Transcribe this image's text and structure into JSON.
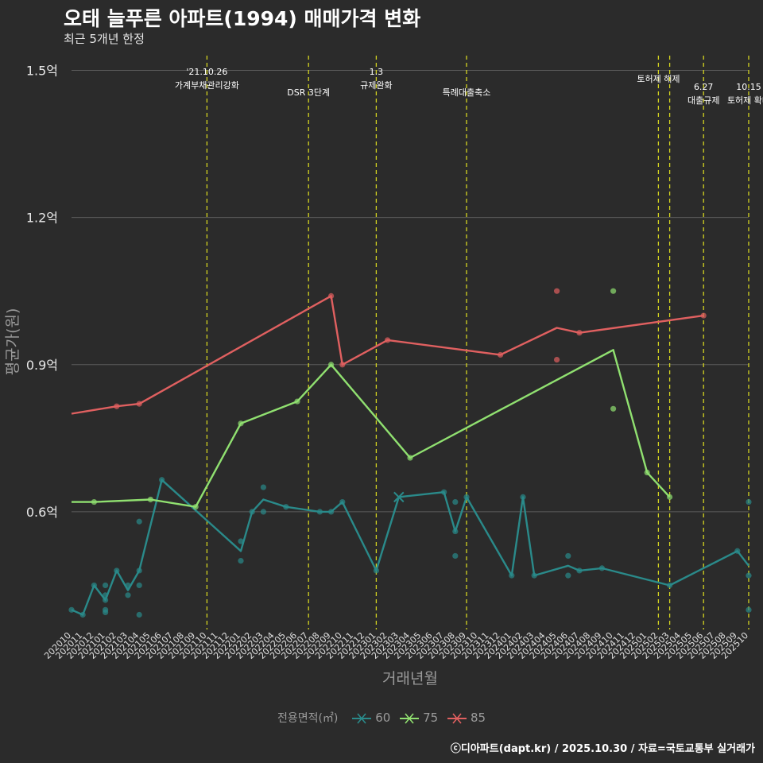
{
  "title": "오태 늘푸른 아파트(1994) 매매가격 변화",
  "subtitle": "최근 5개년 한정",
  "credit": "ⓒ디아파트(dapt.kr) / 2025.10.30 / 자료=국토교통부 실거래가",
  "chart_data": {
    "type": "line",
    "title": "오태 늘푸른 아파트(1994) 매매가격 변화",
    "xlabel": "거래년월",
    "ylabel": "평균가(원)",
    "x_ticks": [
      "202010",
      "202011",
      "202012",
      "202101",
      "202102",
      "202103",
      "202104",
      "202105",
      "202106",
      "202107",
      "202108",
      "202109",
      "202110",
      "202111",
      "202112",
      "202201",
      "202202",
      "202203",
      "202204",
      "202205",
      "202206",
      "202207",
      "202208",
      "202209",
      "202210",
      "202211",
      "202212",
      "202301",
      "202302",
      "202303",
      "202304",
      "202305",
      "202306",
      "202307",
      "202308",
      "202309",
      "202310",
      "202311",
      "202312",
      "202401",
      "202402",
      "202403",
      "202404",
      "202405",
      "202406",
      "202407",
      "202408",
      "202409",
      "202410",
      "202411",
      "202412",
      "202501",
      "202502",
      "202503",
      "202504",
      "202505",
      "202506",
      "202507",
      "202508",
      "202509",
      "202510"
    ],
    "y_ticks": [
      {
        "value": 0.6,
        "label": "0.6억"
      },
      {
        "value": 0.9,
        "label": "0.9억"
      },
      {
        "value": 1.2,
        "label": "1.2억"
      },
      {
        "value": 1.5,
        "label": "1.5억"
      }
    ],
    "ylim": [
      0.36,
      1.53
    ],
    "legend_title": "전용면적(㎡)",
    "series": [
      {
        "name": "60",
        "color": "#2a8a8a",
        "line": [
          [
            0,
            0.4
          ],
          [
            1,
            0.39
          ],
          [
            2,
            0.45
          ],
          [
            3,
            0.42
          ],
          [
            4,
            0.48
          ],
          [
            5,
            0.44
          ],
          [
            6,
            0.48
          ],
          [
            8,
            0.665
          ],
          [
            15,
            0.52
          ],
          [
            16,
            0.6
          ],
          [
            17,
            0.625
          ],
          [
            19,
            0.61
          ],
          [
            22,
            0.6
          ],
          [
            23,
            0.6
          ],
          [
            24,
            0.62
          ],
          [
            27,
            0.48
          ],
          [
            29,
            0.63
          ],
          [
            33,
            0.64
          ],
          [
            34,
            0.56
          ],
          [
            35,
            0.63
          ],
          [
            39,
            0.47
          ],
          [
            40,
            0.63
          ],
          [
            41,
            0.47
          ],
          [
            44,
            0.49
          ],
          [
            45,
            0.48
          ],
          [
            47,
            0.485
          ],
          [
            53,
            0.45
          ],
          [
            59,
            0.52
          ],
          [
            60,
            0.49
          ]
        ],
        "points": [
          [
            0,
            0.4
          ],
          [
            1,
            0.39
          ],
          [
            2,
            0.45
          ],
          [
            3,
            0.45
          ],
          [
            3,
            0.43
          ],
          [
            3,
            0.42
          ],
          [
            3,
            0.4
          ],
          [
            3,
            0.395
          ],
          [
            4,
            0.48
          ],
          [
            5,
            0.45
          ],
          [
            5,
            0.43
          ],
          [
            6,
            0.58
          ],
          [
            6,
            0.48
          ],
          [
            6,
            0.45
          ],
          [
            6,
            0.39
          ],
          [
            8,
            0.665
          ],
          [
            15,
            0.54
          ],
          [
            15,
            0.5
          ],
          [
            16,
            0.6
          ],
          [
            17,
            0.65
          ],
          [
            17,
            0.6
          ],
          [
            19,
            0.61
          ],
          [
            22,
            0.6
          ],
          [
            23,
            0.6
          ],
          [
            24,
            0.62
          ],
          [
            27,
            0.48
          ],
          [
            33,
            0.64
          ],
          [
            34,
            0.62
          ],
          [
            34,
            0.56
          ],
          [
            34,
            0.51
          ],
          [
            35,
            0.63
          ],
          [
            39,
            0.47
          ],
          [
            40,
            0.63
          ],
          [
            41,
            0.47
          ],
          [
            44,
            0.51
          ],
          [
            44,
            0.47
          ],
          [
            45,
            0.48
          ],
          [
            47,
            0.485
          ],
          [
            53,
            0.45
          ],
          [
            59,
            0.52
          ],
          [
            60,
            0.62
          ],
          [
            60,
            0.47
          ],
          [
            60,
            0.4
          ]
        ],
        "x_marks": [
          [
            29,
            0.63
          ]
        ]
      },
      {
        "name": "75",
        "color": "#90e070",
        "line": [
          [
            0,
            0.62
          ],
          [
            2,
            0.62
          ],
          [
            7,
            0.625
          ],
          [
            11,
            0.61
          ],
          [
            15,
            0.78
          ],
          [
            20,
            0.825
          ],
          [
            23,
            0.9
          ],
          [
            30,
            0.71
          ],
          [
            48,
            0.93
          ],
          [
            51,
            0.68
          ],
          [
            53,
            0.63
          ]
        ],
        "points": [
          [
            2,
            0.62
          ],
          [
            7,
            0.625
          ],
          [
            11,
            0.61
          ],
          [
            15,
            0.78
          ],
          [
            20,
            0.825
          ],
          [
            23,
            0.9
          ],
          [
            30,
            0.71
          ],
          [
            48,
            1.05
          ],
          [
            48,
            0.81
          ],
          [
            51,
            0.68
          ],
          [
            53,
            0.63
          ]
        ],
        "x_marks": []
      },
      {
        "name": "85",
        "color": "#e06060",
        "line": [
          [
            0,
            0.8
          ],
          [
            4,
            0.815
          ],
          [
            6,
            0.82
          ],
          [
            23,
            1.04
          ],
          [
            24,
            0.9
          ],
          [
            28,
            0.95
          ],
          [
            38,
            0.92
          ],
          [
            43,
            0.975
          ],
          [
            45,
            0.965
          ],
          [
            56,
            1.0
          ]
        ],
        "points": [
          [
            4,
            0.815
          ],
          [
            6,
            0.82
          ],
          [
            23,
            1.04
          ],
          [
            24,
            0.9
          ],
          [
            28,
            0.95
          ],
          [
            38,
            0.92
          ],
          [
            43,
            1.05
          ],
          [
            43,
            0.91
          ],
          [
            45,
            0.965
          ],
          [
            56,
            1.0
          ]
        ],
        "x_marks": []
      }
    ],
    "events": [
      {
        "x": 12,
        "lines": [
          "'21.10.26",
          "가계부채관리강화"
        ],
        "level": 1
      },
      {
        "x": 21,
        "lines": [
          "DSR 3단계"
        ],
        "level": 2
      },
      {
        "x": 27,
        "lines": [
          "1.3",
          "규제완화"
        ],
        "level": 1
      },
      {
        "x": 35,
        "lines": [
          "특례대출축소"
        ],
        "level": 2
      },
      {
        "x": 52,
        "lines": [
          "토허제 해제"
        ],
        "level": 1
      },
      {
        "x": 53,
        "lines": [],
        "level": 0
      },
      {
        "x": 56,
        "lines": [
          "6.27",
          "대출규제"
        ],
        "level": 2
      },
      {
        "x": 60,
        "lines": [
          "10.15",
          "토허제 확대"
        ],
        "level": 2
      }
    ]
  }
}
